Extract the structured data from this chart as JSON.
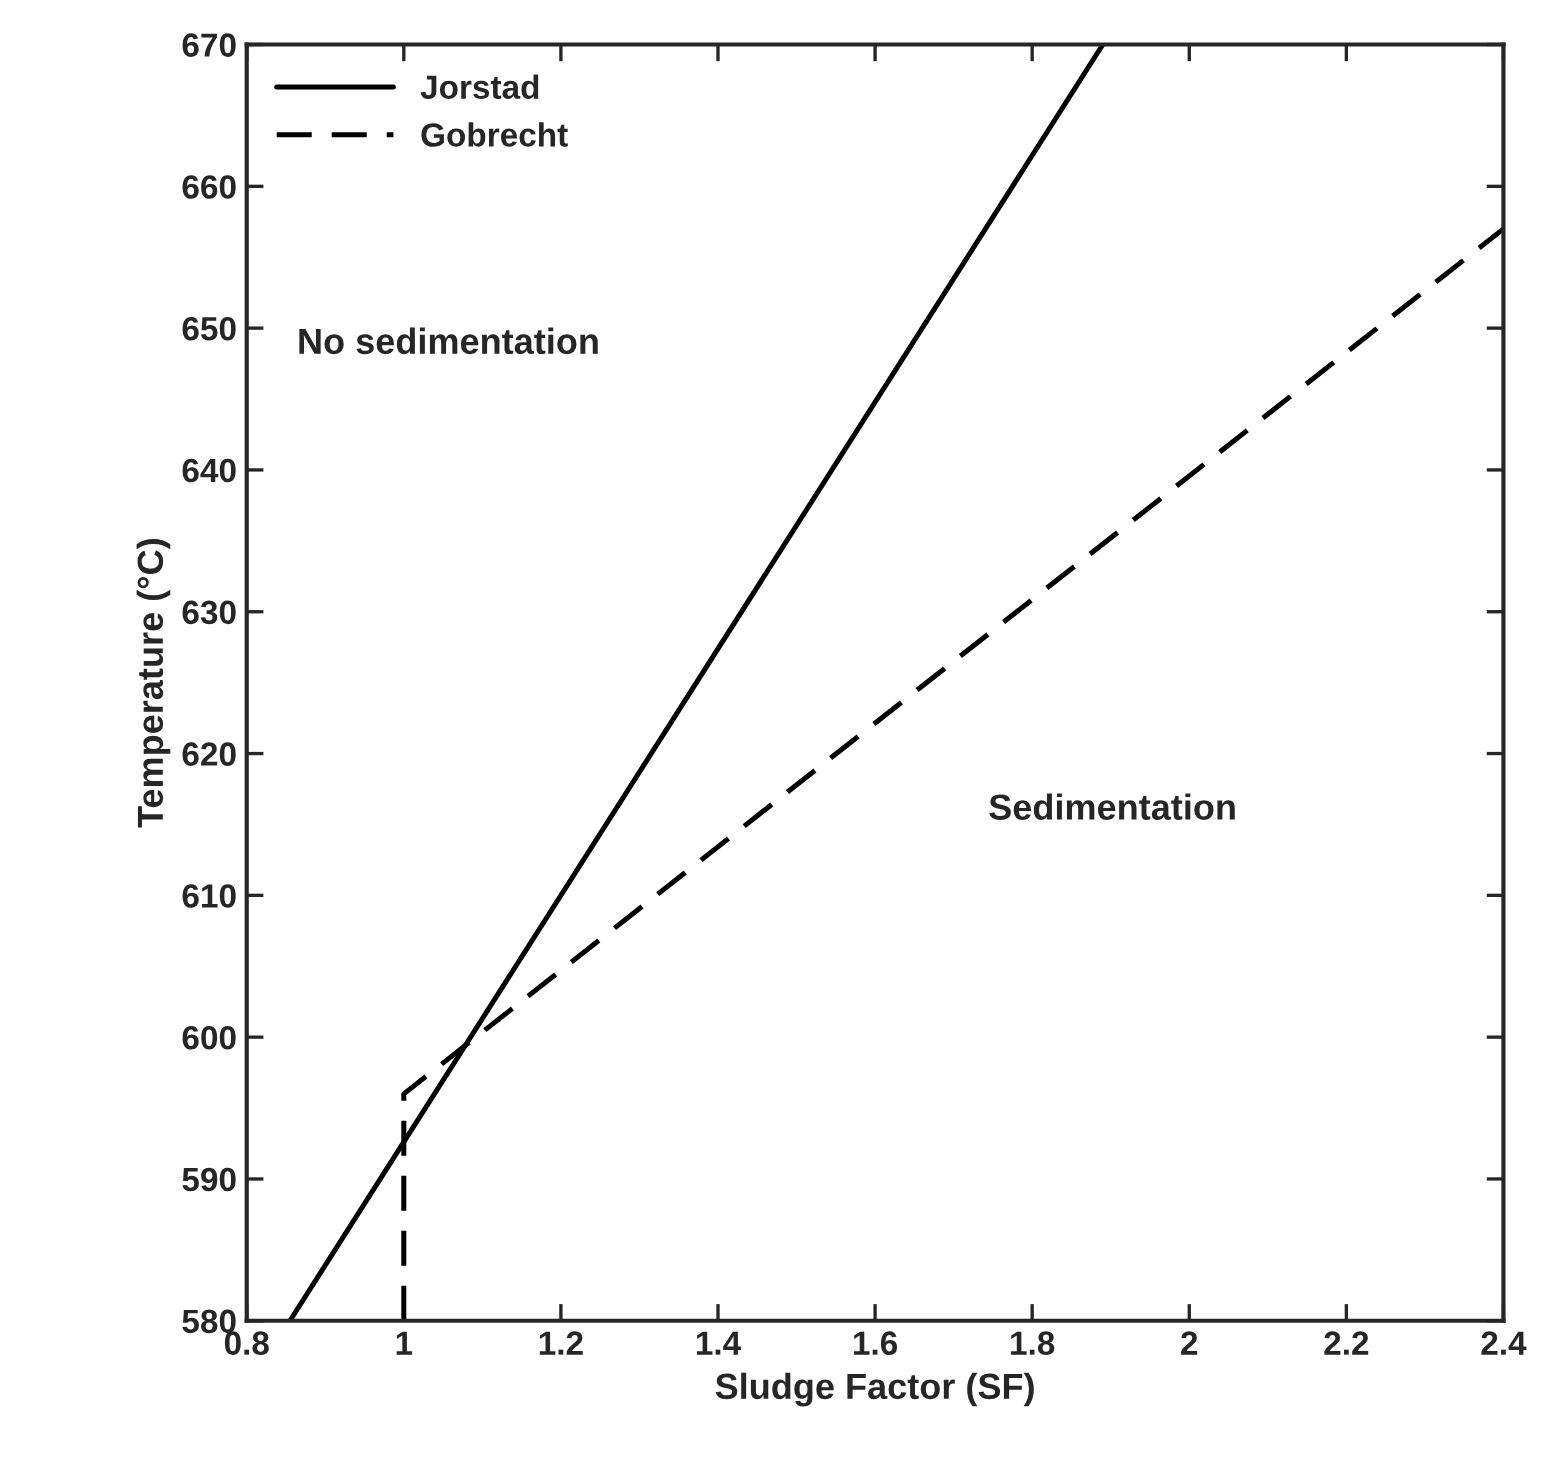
{
  "chart_data": {
    "type": "line",
    "xlabel": "Sludge Factor (SF)",
    "ylabel": "Temperature (°C)",
    "series": [
      {
        "name": "Jorstad",
        "color": "#000000",
        "line_style": "solid",
        "x": [
          0.855,
          1.89
        ],
        "values": [
          580,
          670
        ]
      },
      {
        "name": "Gobrecht",
        "color": "#000000",
        "line_style": "dashed",
        "x": [
          1,
          1,
          2.4
        ],
        "values": [
          580,
          596,
          657
        ]
      }
    ],
    "xlim": [
      0.8,
      2.4
    ],
    "xticks": [
      0.8,
      1,
      1.2,
      1.4,
      1.6,
      1.8,
      2,
      2.2,
      2.4
    ],
    "ylim": [
      580,
      670
    ],
    "yticks": [
      580,
      590,
      600,
      610,
      620,
      630,
      640,
      650,
      660,
      670
    ],
    "annotations": [
      "No sedimentation",
      "Sedimentation"
    ],
    "legend": "top left",
    "grid": false,
    "marker": "none"
  }
}
